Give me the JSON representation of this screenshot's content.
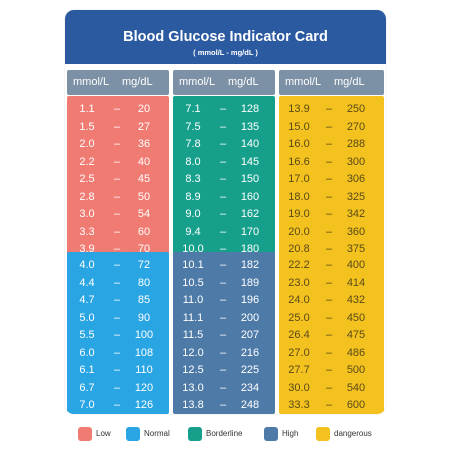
{
  "header": {
    "title": "Blood Glucose Indicator Card",
    "subtitle": "( mmol/L - mg/dL )"
  },
  "columns": [
    {
      "h1": "mmol/L",
      "h2": "mg/dL"
    },
    {
      "h1": "mmol/L",
      "h2": "mg/dL"
    },
    {
      "h1": "mmol/L",
      "h2": "mg/dL"
    }
  ],
  "dash": "–",
  "blocks": {
    "low": [
      [
        "1.1",
        "20"
      ],
      [
        "1.5",
        "27"
      ],
      [
        "2.0",
        "36"
      ],
      [
        "2.2",
        "40"
      ],
      [
        "2.5",
        "45"
      ],
      [
        "2.8",
        "50"
      ],
      [
        "3.0",
        "54"
      ],
      [
        "3.3",
        "60"
      ],
      [
        "3.9",
        "70"
      ]
    ],
    "borderline": [
      [
        "7.1",
        "128"
      ],
      [
        "7.5",
        "135"
      ],
      [
        "7.8",
        "140"
      ],
      [
        "8.0",
        "145"
      ],
      [
        "8.3",
        "150"
      ],
      [
        "8.9",
        "160"
      ],
      [
        "9.0",
        "162"
      ],
      [
        "9.4",
        "170"
      ],
      [
        "10.0",
        "180"
      ]
    ],
    "danger_top": [
      [
        "13.9",
        "250"
      ],
      [
        "15.0",
        "270"
      ],
      [
        "16.0",
        "288"
      ],
      [
        "16.6",
        "300"
      ],
      [
        "17.0",
        "306"
      ],
      [
        "18.0",
        "325"
      ],
      [
        "19.0",
        "342"
      ],
      [
        "20.0",
        "360"
      ],
      [
        "20.8",
        "375"
      ]
    ],
    "normal": [
      [
        "4.0",
        "72"
      ],
      [
        "4.4",
        "80"
      ],
      [
        "4.7",
        "85"
      ],
      [
        "5.0",
        "90"
      ],
      [
        "5.5",
        "100"
      ],
      [
        "6.0",
        "108"
      ],
      [
        "6.1",
        "110"
      ],
      [
        "6.7",
        "120"
      ],
      [
        "7.0",
        "126"
      ]
    ],
    "high": [
      [
        "10.1",
        "182"
      ],
      [
        "10.5",
        "189"
      ],
      [
        "11.0",
        "196"
      ],
      [
        "11.1",
        "200"
      ],
      [
        "11.5",
        "207"
      ],
      [
        "12.0",
        "216"
      ],
      [
        "12.5",
        "225"
      ],
      [
        "13.0",
        "234"
      ],
      [
        "13.8",
        "248"
      ]
    ],
    "danger_bot": [
      [
        "22.2",
        "400"
      ],
      [
        "23.0",
        "414"
      ],
      [
        "24.0",
        "432"
      ],
      [
        "25.0",
        "450"
      ],
      [
        "26.4",
        "475"
      ],
      [
        "27.0",
        "486"
      ],
      [
        "27.7",
        "500"
      ],
      [
        "30.0",
        "540"
      ],
      [
        "33.3",
        "600"
      ]
    ]
  },
  "legend": [
    {
      "label": "Low",
      "color": "#f07b72"
    },
    {
      "label": "Normal",
      "color": "#2aa5e3"
    },
    {
      "label": "Borderline",
      "color": "#16a08c"
    },
    {
      "label": "High",
      "color": "#4e7aa8"
    },
    {
      "label": "dangerous",
      "color": "#f4c21f"
    }
  ],
  "colors": {
    "header": "#2c5aa1",
    "colhead": "#7c90a6",
    "low": "#f07b72",
    "normal": "#2aa5e3",
    "borderline": "#16a08c",
    "high": "#4e7aa8",
    "dangerous": "#f4c21f"
  }
}
